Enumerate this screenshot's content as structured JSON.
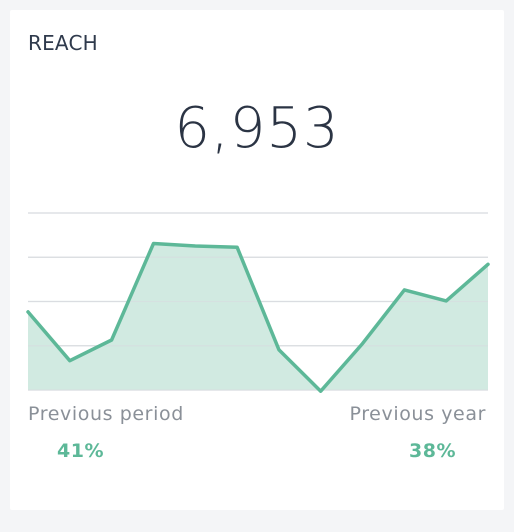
{
  "widget": {
    "title": "REACH",
    "value": "6,953"
  },
  "comparison": {
    "previous_period_label": "Previous period",
    "previous_period_value": "41%",
    "previous_year_label": "Previous year",
    "previous_year_value": "38%"
  },
  "colors": {
    "line": "#5db898",
    "fill": "#cfe9df",
    "grid": "#dadde1",
    "accent_text": "#5db898"
  },
  "chart_data": {
    "type": "area",
    "x": [
      1,
      2,
      3,
      4,
      5,
      6,
      7,
      8,
      9,
      10,
      11,
      12
    ],
    "values": [
      59,
      19,
      36,
      115,
      113,
      112,
      28,
      -6,
      33,
      77,
      68,
      98
    ],
    "ylim": [
      -5,
      140
    ],
    "grid": true,
    "title": "",
    "xlabel": "",
    "ylabel": ""
  }
}
